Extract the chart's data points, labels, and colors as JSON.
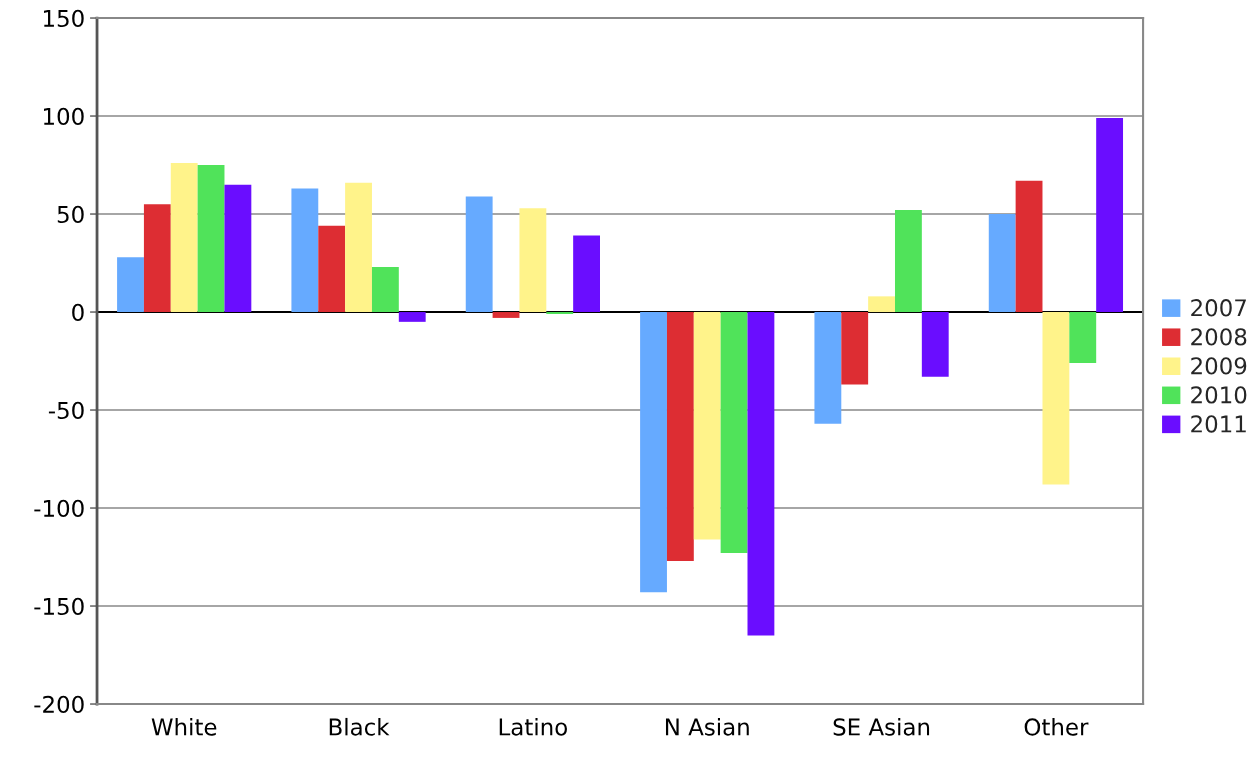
{
  "chart_data": {
    "type": "bar",
    "categories": [
      "White",
      "Black",
      "Latino",
      "N Asian",
      "SE Asian",
      "Other"
    ],
    "series": [
      {
        "name": "2007",
        "color": "#66aaff",
        "values": [
          28,
          63,
          59,
          -143,
          -57,
          50
        ]
      },
      {
        "name": "2008",
        "color": "#dd2d33",
        "values": [
          55,
          44,
          -3,
          -127,
          -37,
          67
        ]
      },
      {
        "name": "2009",
        "color": "#fff38a",
        "values": [
          76,
          66,
          53,
          -116,
          8,
          -88
        ]
      },
      {
        "name": "2010",
        "color": "#50e35a",
        "values": [
          75,
          23,
          -1,
          -123,
          52,
          -26
        ]
      },
      {
        "name": "2011",
        "color": "#6a0dff",
        "values": [
          65,
          -5,
          39,
          -165,
          -33,
          99
        ]
      }
    ],
    "ylim": [
      -200,
      150
    ],
    "yticks": [
      -200,
      -150,
      -100,
      -50,
      0,
      50,
      100,
      150
    ],
    "grid": "y",
    "legend": "right"
  }
}
